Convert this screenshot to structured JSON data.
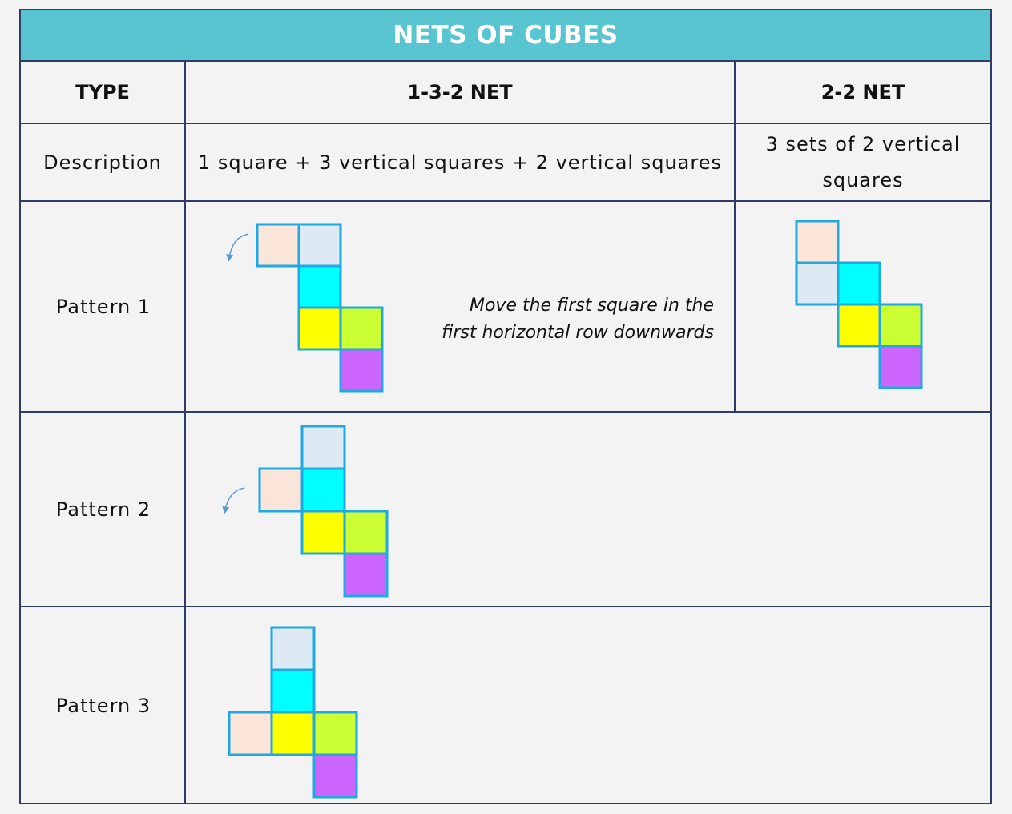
{
  "title": "NETS OF CUBES",
  "headers": {
    "type": "TYPE",
    "net_132": "1-3-2 NET",
    "net_22": "2-2 NET"
  },
  "description": {
    "label": "Description",
    "net_132": "1 square + 3 vertical squares + 2 vertical squares",
    "net_22": "3 sets of 2 vertical squares"
  },
  "patterns": [
    {
      "label": "Pattern 1"
    },
    {
      "label": "Pattern 2"
    },
    {
      "label": "Pattern 3"
    }
  ],
  "note": {
    "line1": "Move the first square in the",
    "line2": "first horizontal row downwards"
  },
  "colors": {
    "header_bg": "#58c5d0",
    "square_border": "#1ea9e2",
    "peach": "#fae5d8",
    "light_blue": "#dde9f3",
    "cyan": "#00ffff",
    "yellow": "#ffff00",
    "lime": "#ccff33",
    "purple": "#cc66ff",
    "arrow": "#5b9bd5"
  }
}
